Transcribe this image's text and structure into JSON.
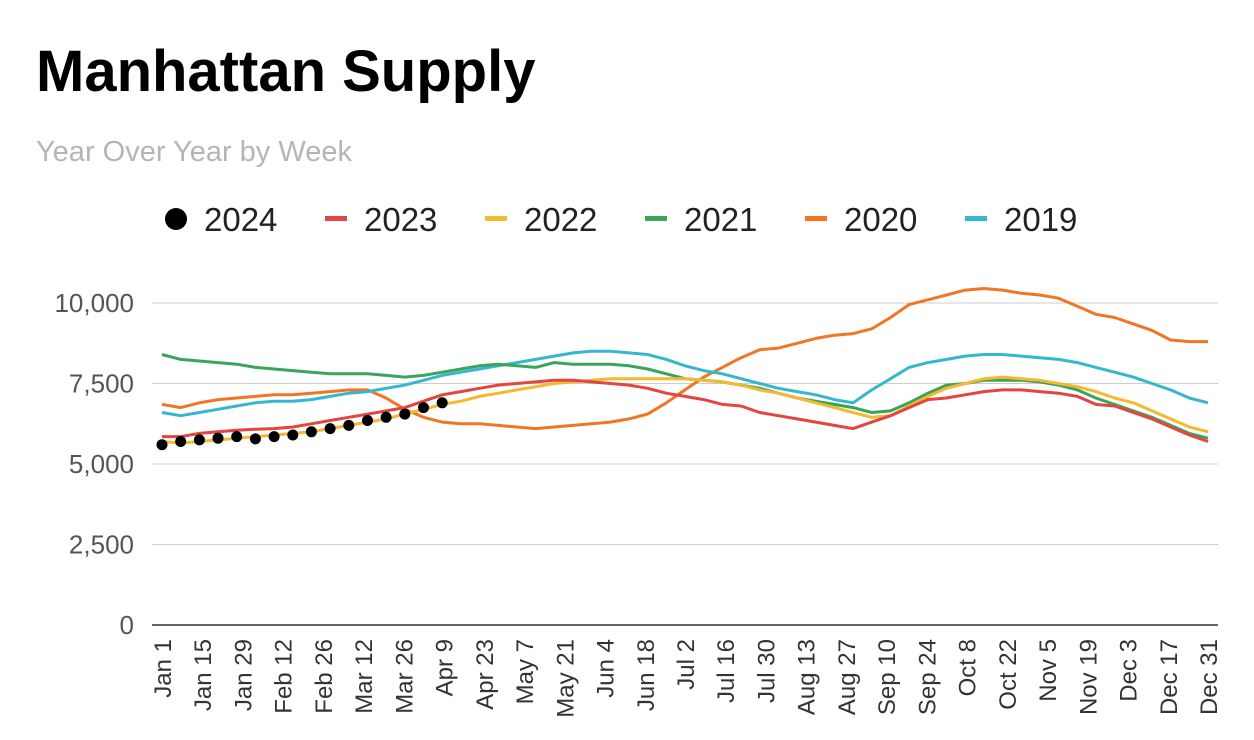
{
  "chart_data": {
    "type": "line",
    "title": "Manhattan Supply",
    "subtitle": "Year Over Year by Week",
    "xlabel": "",
    "ylabel": "",
    "ylim": [
      0,
      10000
    ],
    "yticks": [
      0,
      2500,
      5000,
      7500,
      10000
    ],
    "ytick_labels": [
      "0",
      "2,500",
      "5,000",
      "7,500",
      "10,000"
    ],
    "x_labels": [
      "Jan 1",
      "Jan 15",
      "Jan 29",
      "Feb 12",
      "Feb 26",
      "Mar 12",
      "Mar 26",
      "Apr 9",
      "Apr 23",
      "May 7",
      "May 21",
      "Jun 4",
      "Jun 18",
      "Jul 2",
      "Jul 16",
      "Jul 30",
      "Aug 13",
      "Aug 27",
      "Sep 10",
      "Sep 24",
      "Oct 8",
      "Oct 22",
      "Nov 5",
      "Nov 19",
      "Dec 3",
      "Dec 17",
      "Dec 31"
    ],
    "legend_position": "top",
    "grid": true,
    "series": [
      {
        "name": "2024",
        "color": "#000000",
        "style": "points",
        "values": [
          5600,
          5700,
          5750,
          5800,
          5850,
          5780,
          5850,
          5900,
          6000,
          6100,
          6200,
          6350,
          6450,
          6550,
          6750,
          6900
        ]
      },
      {
        "name": "2023",
        "color": "#e2463e",
        "style": "line",
        "values": [
          5850,
          5850,
          5950,
          6000,
          6050,
          6080,
          6100,
          6150,
          6250,
          6350,
          6450,
          6550,
          6650,
          6750,
          6950,
          7150,
          7250,
          7350,
          7450,
          7500,
          7550,
          7600,
          7600,
          7550,
          7500,
          7450,
          7350,
          7200,
          7100,
          7000,
          6850,
          6800,
          6600,
          6500,
          6400,
          6300,
          6200,
          6100,
          6300,
          6500,
          6750,
          7000,
          7050,
          7150,
          7250,
          7300,
          7300,
          7250,
          7200,
          7100,
          6850,
          6800,
          6600,
          6400,
          6150,
          5900,
          5700
        ]
      },
      {
        "name": "2022",
        "color": "#f4b92d",
        "style": "line",
        "values": [
          5700,
          5650,
          5700,
          5750,
          5800,
          5850,
          5900,
          5950,
          6000,
          6100,
          6200,
          6300,
          6400,
          6550,
          6700,
          6850,
          6950,
          7100,
          7200,
          7300,
          7400,
          7500,
          7550,
          7600,
          7650,
          7650,
          7650,
          7650,
          7650,
          7600,
          7550,
          7450,
          7300,
          7200,
          7050,
          6900,
          6750,
          6600,
          6450,
          6500,
          6800,
          7100,
          7350,
          7500,
          7650,
          7700,
          7650,
          7600,
          7500,
          7400,
          7250,
          7050,
          6900,
          6650,
          6400,
          6150,
          6000
        ]
      },
      {
        "name": "2021",
        "color": "#3ba45b",
        "style": "line",
        "values": [
          8400,
          8250,
          8200,
          8150,
          8100,
          8000,
          7950,
          7900,
          7850,
          7800,
          7800,
          7800,
          7750,
          7700,
          7750,
          7850,
          7950,
          8050,
          8100,
          8050,
          8000,
          8150,
          8100,
          8100,
          8100,
          8050,
          7950,
          7800,
          7650,
          7600,
          7550,
          7450,
          7350,
          7200,
          7050,
          6950,
          6850,
          6750,
          6600,
          6650,
          6900,
          7200,
          7450,
          7500,
          7600,
          7600,
          7600,
          7550,
          7450,
          7300,
          7050,
          6850,
          6650,
          6450,
          6200,
          5950,
          5800
        ]
      },
      {
        "name": "2020",
        "color": "#f27524",
        "style": "line",
        "values": [
          6850,
          6750,
          6900,
          7000,
          7050,
          7100,
          7150,
          7150,
          7200,
          7250,
          7300,
          7300,
          7050,
          6700,
          6450,
          6300,
          6250,
          6250,
          6200,
          6150,
          6100,
          6150,
          6200,
          6250,
          6300,
          6400,
          6550,
          6900,
          7300,
          7700,
          8000,
          8300,
          8550,
          8600,
          8750,
          8900,
          9000,
          9050,
          9200,
          9550,
          9950,
          10100,
          10250,
          10400,
          10450,
          10400,
          10300,
          10250,
          10150,
          9900,
          9650,
          9550,
          9350,
          9150,
          8850,
          8800,
          8800
        ]
      },
      {
        "name": "2019",
        "color": "#34b8cf",
        "style": "line",
        "values": [
          6600,
          6500,
          6600,
          6700,
          6800,
          6900,
          6950,
          6950,
          7000,
          7100,
          7200,
          7250,
          7350,
          7450,
          7600,
          7750,
          7850,
          7950,
          8050,
          8150,
          8250,
          8350,
          8450,
          8500,
          8500,
          8450,
          8400,
          8250,
          8050,
          7900,
          7800,
          7650,
          7500,
          7350,
          7250,
          7150,
          7000,
          6900,
          7300,
          7650,
          8000,
          8150,
          8250,
          8350,
          8400,
          8400,
          8350,
          8300,
          8250,
          8150,
          8000,
          7850,
          7700,
          7500,
          7300,
          7050,
          6900
        ]
      }
    ]
  }
}
